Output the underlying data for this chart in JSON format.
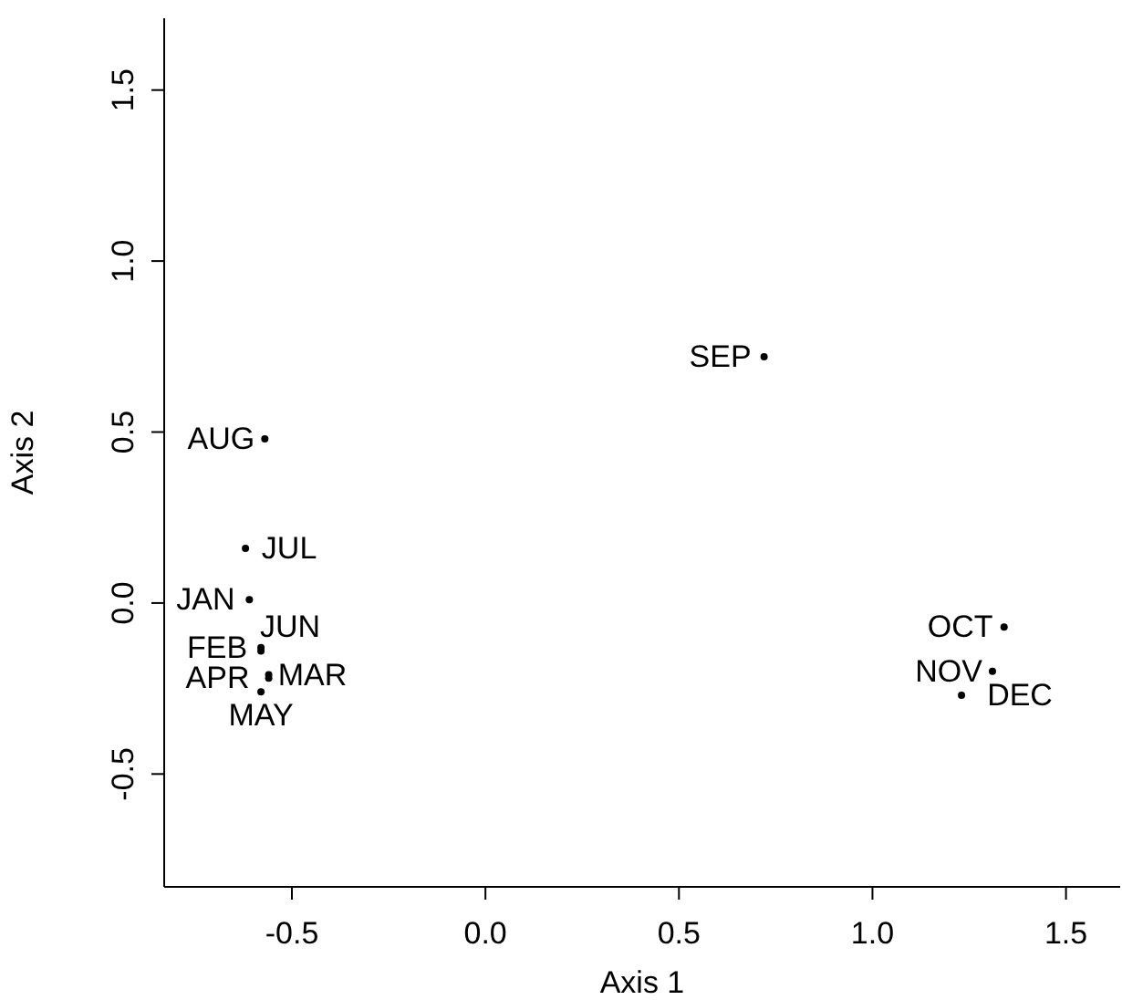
{
  "chart_data": {
    "type": "scatter",
    "xlabel": "Axis 1",
    "ylabel": "Axis 2",
    "marker": "circle",
    "grid": false,
    "legend": false,
    "x": [
      -0.61,
      -0.58,
      -0.56,
      -0.56,
      -0.58,
      -0.58,
      -0.62,
      -0.57,
      0.72,
      1.34,
      1.31,
      1.23
    ],
    "values": [
      0.01,
      -0.13,
      -0.21,
      -0.22,
      -0.26,
      -0.14,
      0.16,
      0.48,
      0.72,
      -0.07,
      -0.2,
      -0.27
    ],
    "value_labels": [
      "JAN",
      "FEB",
      "MAR",
      "APR",
      "MAY",
      "JUN",
      "JUL",
      "AUG",
      "SEP",
      "OCT",
      "NOV",
      "DEC"
    ],
    "color": "#000000",
    "xlim": [
      -0.83,
      1.64
    ],
    "xticks": [
      {
        "value": -0.5,
        "label": "-0.5"
      },
      {
        "value": 0,
        "label": "0.0"
      },
      {
        "value": 0.5,
        "label": "0.5"
      },
      {
        "value": 1,
        "label": "1.0"
      },
      {
        "value": 1.5,
        "label": "1.5"
      }
    ],
    "ylim": [
      -0.83,
      1.71
    ],
    "yticks": [
      {
        "value": -0.5,
        "label": "-0.5"
      },
      {
        "value": 0,
        "label": "0.0"
      },
      {
        "value": 0.5,
        "label": "0.5"
      },
      {
        "value": 1,
        "label": "1.0"
      },
      {
        "value": 1.5,
        "label": "1.5"
      }
    ]
  }
}
